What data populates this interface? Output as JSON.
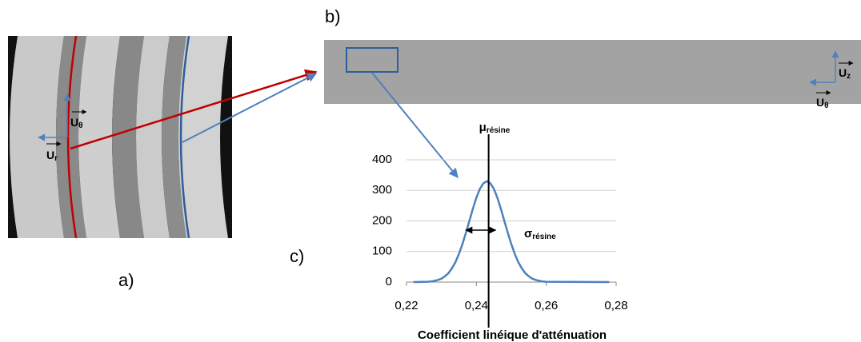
{
  "figure": {
    "panel_a": {
      "label": "a)",
      "u_r": {
        "main": "U",
        "sub": "r"
      },
      "u_theta": {
        "main": "U",
        "sub": "θ"
      }
    },
    "panel_b": {
      "label": "b)",
      "u_z": {
        "main": "U",
        "sub": "z"
      },
      "u_theta": {
        "main": "U",
        "sub": "θ"
      }
    },
    "panel_c": {
      "label": "c)"
    }
  },
  "chart_data": {
    "type": "line",
    "x_label": "Coefficient linéique d'atténuation",
    "x": [
      0.222,
      0.226,
      0.227,
      0.228,
      0.229,
      0.23,
      0.231,
      0.232,
      0.233,
      0.234,
      0.235,
      0.236,
      0.237,
      0.238,
      0.239,
      0.24,
      0.241,
      0.242,
      0.243,
      0.244,
      0.245,
      0.246,
      0.247,
      0.248,
      0.249,
      0.25,
      0.251,
      0.252,
      0.253,
      0.254,
      0.255,
      0.256,
      0.257,
      0.258,
      0.259,
      0.26,
      0.278
    ],
    "values": [
      0,
      1,
      2,
      4,
      7,
      11,
      19,
      29,
      45,
      65,
      92,
      124,
      161,
      200,
      240,
      276,
      305,
      323,
      330,
      323,
      305,
      276,
      240,
      200,
      161,
      124,
      92,
      65,
      45,
      29,
      19,
      11,
      7,
      4,
      2,
      1,
      0
    ],
    "color": "#4f81bd",
    "xlim": [
      0.22,
      0.28
    ],
    "xticks": [
      {
        "value": 0.22,
        "label": "0,22"
      },
      {
        "value": 0.24,
        "label": "0,24"
      },
      {
        "value": 0.26,
        "label": "0,26"
      },
      {
        "value": 0.28,
        "label": "0,28"
      }
    ],
    "ylim": [
      0,
      400
    ],
    "yticks": [
      0,
      100,
      200,
      300,
      400
    ],
    "grid": true,
    "mean_x": 0.2435,
    "mean_label": {
      "main": "μ",
      "sub": "résine"
    },
    "sigma_range": [
      0.237,
      0.2455
    ],
    "sigma_label": {
      "main": "σ",
      "sub": "résine"
    }
  }
}
